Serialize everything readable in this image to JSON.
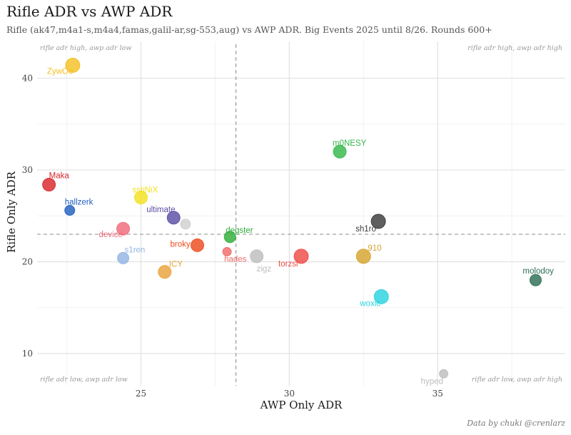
{
  "header": {
    "title": "Rifle ADR vs AWP ADR",
    "subtitle": "Rifle (ak47,m4a1-s,m4a4,famas,galil-ar,sg-553,aug) vs AWP ADR. Big Events 2025 until 8/26. Rounds 600+",
    "caption": "Data by chuki @crenlarz"
  },
  "chart_data": {
    "type": "scatter",
    "title": "Rifle ADR vs AWP ADR",
    "subtitle": "Rifle (ak47,m4a1-s,m4a4,famas,galil-ar,sg-553,aug) vs AWP ADR. Big Events 2025 until 8/26. Rounds 600+",
    "xlabel": "AWP Only ADR",
    "ylabel": "Rifle Only ADR",
    "xlim": [
      21.5,
      39.3
    ],
    "ylim": [
      6.5,
      44
    ],
    "xticks": [
      25,
      30,
      35
    ],
    "yticks": [
      10,
      20,
      30,
      40
    ],
    "grid": true,
    "reference_lines": {
      "x": 28.2,
      "y": 23.0
    },
    "corner_annotations": {
      "top_left": "rifle adr high, awp adr low",
      "top_right": "rifle adr high, awp adr high",
      "bottom_left": "rifle adr low, awp adr low",
      "bottom_right": "rifle adr low, awp adr high"
    },
    "points": [
      {
        "name": "ZywOo",
        "x": 22.7,
        "y": 41.4,
        "color": "#f5c023",
        "r": 10,
        "ldx": -36,
        "ldy": 12
      },
      {
        "name": "Maka",
        "x": 21.9,
        "y": 28.4,
        "color": "#d9262b",
        "r": 9,
        "ldx": 0,
        "ldy": -9
      },
      {
        "name": "hallzerk",
        "x": 22.6,
        "y": 25.6,
        "color": "#1f5fbf",
        "r": 7,
        "ldx": -7,
        "ldy": -8
      },
      {
        "name": "sstiNiX",
        "x": 25.0,
        "y": 27.0,
        "color": "#f2e21f",
        "r": 9,
        "ldx": -12,
        "ldy": -7
      },
      {
        "name": "ultimate",
        "x": 26.1,
        "y": 24.8,
        "color": "#5a4ea3",
        "r": 9,
        "ldx": -38,
        "ldy": -8
      },
      {
        "name": "",
        "x": 26.5,
        "y": 24.1,
        "color": "#cfcfcf",
        "r": 7,
        "ldx": 0,
        "ldy": 0
      },
      {
        "name": "device",
        "x": 24.4,
        "y": 23.6,
        "color": "#f06a7a",
        "r": 9,
        "ldx": -34,
        "ldy": 12
      },
      {
        "name": "broky",
        "x": 26.9,
        "y": 21.8,
        "color": "#ee4a1f",
        "r": 9,
        "ldx": -38,
        "ldy": 2
      },
      {
        "name": "degster",
        "x": 28.0,
        "y": 22.7,
        "color": "#2fad3b",
        "r": 8,
        "ldx": -6,
        "ldy": -6
      },
      {
        "name": "s1ren",
        "x": 24.4,
        "y": 20.4,
        "color": "#93b4e3",
        "r": 8,
        "ldx": 2,
        "ldy": -8
      },
      {
        "name": "hades",
        "x": 27.9,
        "y": 21.1,
        "color": "#f06a6a",
        "r": 6,
        "ldx": -4,
        "ldy": 14
      },
      {
        "name": "ICY",
        "x": 25.8,
        "y": 18.9,
        "color": "#e9a23a",
        "r": 9,
        "ldx": 6,
        "ldy": -7
      },
      {
        "name": "zigz",
        "x": 28.9,
        "y": 20.6,
        "color": "#bdbdbd",
        "r": 9,
        "ldx": 0,
        "ldy": 21
      },
      {
        "name": "torzsi",
        "x": 30.4,
        "y": 20.6,
        "color": "#ee4a45",
        "r": 10,
        "ldx": -32,
        "ldy": 14
      },
      {
        "name": "m0NESY",
        "x": 31.7,
        "y": 32.0,
        "color": "#33b84a",
        "r": 9,
        "ldx": -10,
        "ldy": -8
      },
      {
        "name": "sh1ro",
        "x": 33.0,
        "y": 24.4,
        "color": "#3a3a3a",
        "r": 10,
        "ldx": -32,
        "ldy": 14
      },
      {
        "name": "910",
        "x": 32.5,
        "y": 20.6,
        "color": "#d6a42c",
        "r": 10,
        "ldx": 6,
        "ldy": -8
      },
      {
        "name": "woxic",
        "x": 33.1,
        "y": 16.2,
        "color": "#2bd3de",
        "r": 10,
        "ldx": -30,
        "ldy": 13
      },
      {
        "name": "molodoy",
        "x": 38.3,
        "y": 18.0,
        "color": "#2e6e56",
        "r": 8,
        "ldx": -18,
        "ldy": -9
      },
      {
        "name": "hyped",
        "x": 35.2,
        "y": 7.8,
        "color": "#bdbdbd",
        "r": 6,
        "ldx": -32,
        "ldy": 14
      }
    ]
  }
}
